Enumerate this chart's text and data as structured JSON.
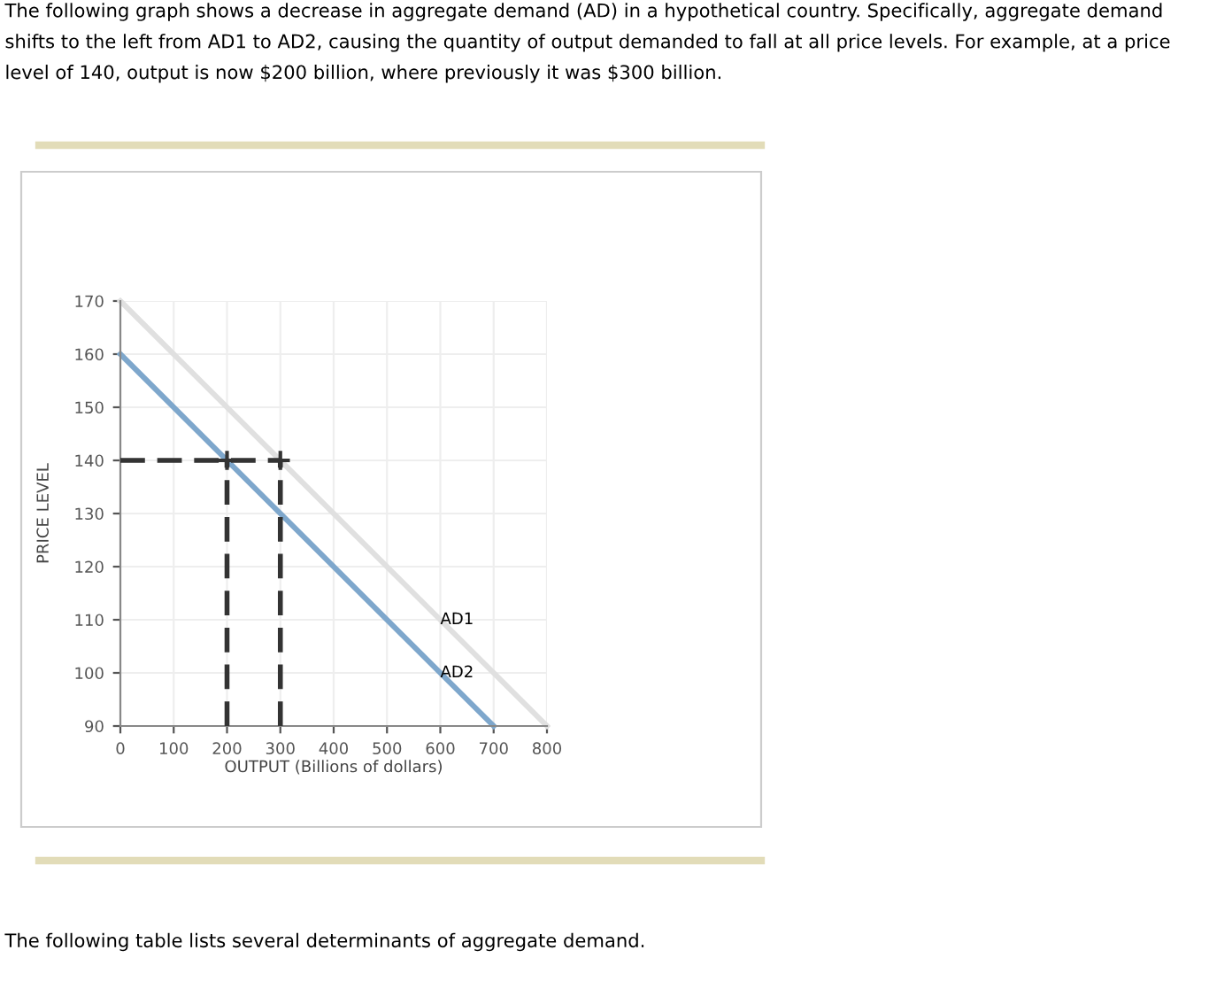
{
  "chart_data": {
    "type": "line",
    "title": "The following graph shows a decrease in aggregate demand (AD) in a hypothetical country. Specifically, aggregate demand shifts to the left from AD1 to AD2, causing the quantity of output demanded to fall at all price levels. For example, at a price level of 140, output is now $200 billion, where previously it was $300 billion.",
    "xlabel": "OUTPUT (Billions of dollars)",
    "ylabel": "PRICE LEVEL",
    "series": [
      {
        "color": "#e0e0e0",
        "x": [
          0,
          800
        ],
        "values": [
          170,
          90
        ]
      },
      {
        "color": "#7ea7cc",
        "x": [
          0,
          700
        ],
        "values": [
          160,
          90
        ]
      },
      {
        "color": "#333333",
        "line_style": "dashed",
        "x": [
          0,
          300
        ],
        "values": [
          140,
          140
        ]
      },
      {
        "color": "#333333",
        "line_style": "dashed",
        "x": [
          200,
          200
        ],
        "values": [
          90,
          140
        ]
      },
      {
        "color": "#333333",
        "line_style": "dashed",
        "x": [
          300,
          300
        ],
        "values": [
          90,
          140
        ]
      },
      {
        "type": "scatter",
        "color": "#333333",
        "marker": "cross",
        "x": [
          200,
          300
        ],
        "values": [
          140,
          140
        ]
      }
    ],
    "xlim": [
      0,
      800
    ],
    "ylim": [
      90,
      170
    ],
    "xticks": [
      0,
      100,
      200,
      300,
      400,
      500,
      600,
      700,
      800
    ],
    "yticks": [
      90,
      100,
      110,
      120,
      130,
      140,
      150,
      160,
      170
    ],
    "grid": true,
    "annotations": [
      {
        "text": "AD1",
        "x": 600,
        "y": 110
      },
      {
        "text": "AD2",
        "x": 600,
        "y": 100
      },
      "The following table lists several determinants of aggregate demand."
    ]
  }
}
